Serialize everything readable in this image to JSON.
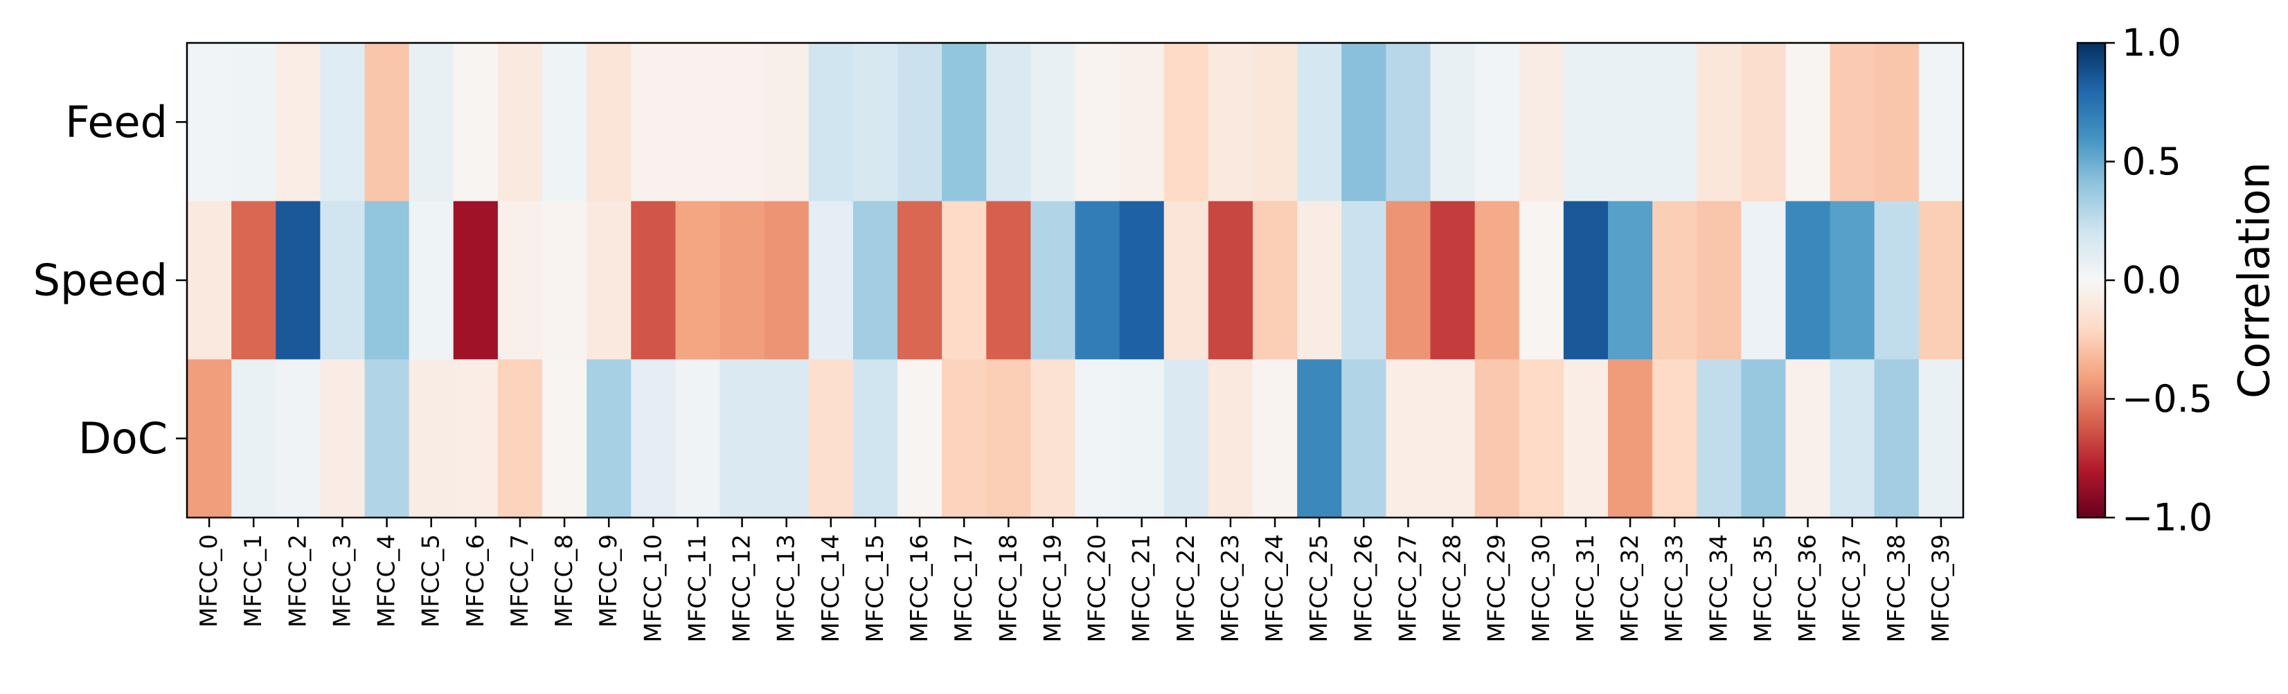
{
  "chart_data": {
    "type": "heatmap",
    "title": "",
    "xlabel": "",
    "ylabel": "",
    "rows": [
      "Feed",
      "Speed",
      "DoC"
    ],
    "columns": [
      "MFCC_0",
      "MFCC_1",
      "MFCC_2",
      "MFCC_3",
      "MFCC_4",
      "MFCC_5",
      "MFCC_6",
      "MFCC_7",
      "MFCC_8",
      "MFCC_9",
      "MFCC_10",
      "MFCC_11",
      "MFCC_12",
      "MFCC_13",
      "MFCC_14",
      "MFCC_15",
      "MFCC_16",
      "MFCC_17",
      "MFCC_18",
      "MFCC_19",
      "MFCC_20",
      "MFCC_21",
      "MFCC_22",
      "MFCC_23",
      "MFCC_24",
      "MFCC_25",
      "MFCC_26",
      "MFCC_27",
      "MFCC_28",
      "MFCC_29",
      "MFCC_30",
      "MFCC_31",
      "MFCC_32",
      "MFCC_33",
      "MFCC_34",
      "MFCC_35",
      "MFCC_36",
      "MFCC_37",
      "MFCC_38",
      "MFCC_39"
    ],
    "values": [
      [
        0.03,
        0.05,
        -0.07,
        0.12,
        -0.28,
        0.08,
        -0.02,
        -0.1,
        0.05,
        -0.13,
        -0.04,
        -0.04,
        -0.04,
        -0.06,
        0.2,
        0.17,
        0.22,
        0.4,
        0.15,
        0.08,
        -0.03,
        -0.05,
        -0.2,
        -0.1,
        -0.12,
        0.18,
        0.42,
        0.28,
        0.08,
        0.03,
        -0.08,
        0.07,
        0.07,
        0.07,
        -0.12,
        -0.18,
        -0.02,
        -0.26,
        -0.28,
        0.03
      ],
      [
        -0.1,
        -0.58,
        0.85,
        0.2,
        0.4,
        0.05,
        -0.85,
        -0.05,
        -0.03,
        -0.1,
        -0.63,
        -0.4,
        -0.42,
        -0.45,
        0.1,
        0.35,
        -0.58,
        -0.2,
        -0.6,
        0.3,
        0.7,
        0.82,
        -0.13,
        -0.67,
        -0.25,
        -0.08,
        0.22,
        -0.45,
        -0.7,
        -0.38,
        -0.02,
        0.85,
        0.55,
        -0.25,
        -0.28,
        0.06,
        0.65,
        0.55,
        0.25,
        -0.25
      ],
      [
        -0.42,
        0.07,
        0.04,
        -0.08,
        0.3,
        -0.08,
        -0.07,
        -0.23,
        -0.02,
        0.33,
        0.1,
        0.04,
        0.15,
        0.15,
        -0.17,
        0.2,
        -0.02,
        -0.23,
        -0.25,
        -0.15,
        0.03,
        0.05,
        0.15,
        -0.1,
        -0.03,
        0.65,
        0.3,
        -0.07,
        -0.07,
        -0.27,
        -0.2,
        -0.07,
        -0.43,
        -0.2,
        0.25,
        0.38,
        -0.05,
        0.18,
        0.35,
        0.07
      ]
    ],
    "colorbar": {
      "label": "Correlation",
      "range": [
        -1.0,
        1.0
      ],
      "ticks": [
        "1.0",
        "0.5",
        "0.0",
        "−0.5",
        "−1.0"
      ],
      "tick_values": [
        1.0,
        0.5,
        0.0,
        -0.5,
        -1.0
      ],
      "colormap": "RdBu"
    },
    "grid": false
  }
}
